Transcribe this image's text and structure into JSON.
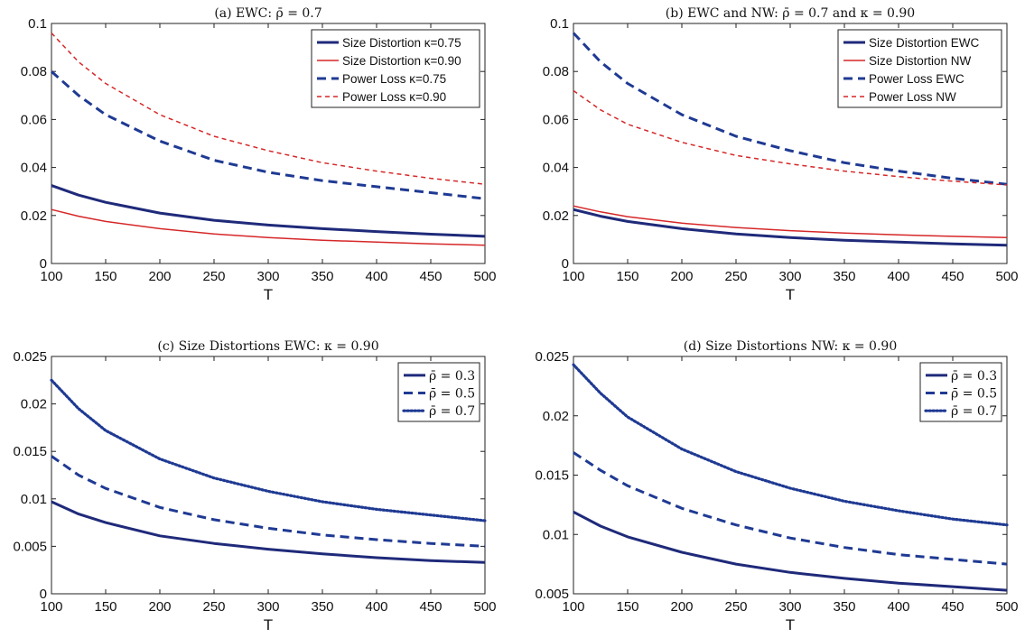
{
  "chart_data": [
    {
      "type": "line",
      "title": "(a) EWC: ρ̄ = 0.7",
      "xlabel": "T",
      "ylabel": "",
      "xlim": [
        100,
        500
      ],
      "ylim": [
        0,
        0.1
      ],
      "xticks": [
        100,
        150,
        200,
        250,
        300,
        350,
        400,
        450,
        500
      ],
      "yticks": [
        0,
        0.02,
        0.04,
        0.06,
        0.08,
        0.1
      ],
      "ytick_labels": [
        "0",
        "0.02",
        "0.04",
        "0.06",
        "0.08",
        "0.1"
      ],
      "legend_position": "top-right",
      "x": [
        100,
        125,
        150,
        200,
        250,
        300,
        350,
        400,
        450,
        500
      ],
      "series": [
        {
          "name": "Size Distortion κ=0.75",
          "color": "#1f2a7a",
          "style": "solid-thick",
          "values": [
            0.0325,
            0.0285,
            0.0255,
            0.021,
            0.018,
            0.016,
            0.0145,
            0.0133,
            0.0122,
            0.0113
          ]
        },
        {
          "name": "Size Distortion κ=0.90",
          "color": "#d62728",
          "style": "solid-thin",
          "values": [
            0.0225,
            0.0197,
            0.0175,
            0.0145,
            0.0123,
            0.0108,
            0.0097,
            0.0089,
            0.0082,
            0.0076
          ]
        },
        {
          "name": "Power Loss κ=0.75",
          "color": "#1f3a93",
          "style": "dashed-thick",
          "values": [
            0.08,
            0.07,
            0.062,
            0.051,
            0.043,
            0.038,
            0.0345,
            0.032,
            0.0295,
            0.027
          ]
        },
        {
          "name": "Power Loss κ=0.90",
          "color": "#d62728",
          "style": "dashed-thin",
          "values": [
            0.096,
            0.084,
            0.075,
            0.062,
            0.053,
            0.047,
            0.042,
            0.0385,
            0.0355,
            0.033
          ]
        }
      ]
    },
    {
      "type": "line",
      "title": "(b) EWC and NW: ρ̄ = 0.7 and κ = 0.90",
      "xlabel": "T",
      "ylabel": "",
      "xlim": [
        100,
        500
      ],
      "ylim": [
        0,
        0.1
      ],
      "xticks": [
        100,
        150,
        200,
        250,
        300,
        350,
        400,
        450,
        500
      ],
      "yticks": [
        0,
        0.02,
        0.04,
        0.06,
        0.08,
        0.1
      ],
      "ytick_labels": [
        "0",
        "0.02",
        "0.04",
        "0.06",
        "0.08",
        "0.1"
      ],
      "legend_position": "top-right",
      "x": [
        100,
        125,
        150,
        200,
        250,
        300,
        350,
        400,
        450,
        500
      ],
      "series": [
        {
          "name": "Size Distortion EWC",
          "color": "#1f2a7a",
          "style": "solid-thick",
          "values": [
            0.0225,
            0.0197,
            0.0175,
            0.0145,
            0.0123,
            0.0108,
            0.0097,
            0.0089,
            0.0082,
            0.0076
          ]
        },
        {
          "name": "Size Distortion NW",
          "color": "#d62728",
          "style": "solid-thin",
          "values": [
            0.024,
            0.0215,
            0.0195,
            0.0168,
            0.015,
            0.0137,
            0.0127,
            0.0119,
            0.0113,
            0.0108
          ]
        },
        {
          "name": "Power Loss EWC",
          "color": "#1f3a93",
          "style": "dashed-thick",
          "values": [
            0.096,
            0.084,
            0.075,
            0.062,
            0.053,
            0.047,
            0.042,
            0.0385,
            0.0355,
            0.033
          ]
        },
        {
          "name": "Power Loss NW",
          "color": "#d62728",
          "style": "dashed-thin",
          "values": [
            0.072,
            0.064,
            0.058,
            0.0505,
            0.045,
            0.0415,
            0.0385,
            0.0362,
            0.0343,
            0.0327
          ]
        }
      ]
    },
    {
      "type": "line",
      "title": "(c) Size Distortions EWC: κ = 0.90",
      "xlabel": "T",
      "ylabel": "",
      "xlim": [
        100,
        500
      ],
      "ylim": [
        0,
        0.025
      ],
      "xticks": [
        100,
        150,
        200,
        250,
        300,
        350,
        400,
        450,
        500
      ],
      "yticks": [
        0,
        0.005,
        0.01,
        0.015,
        0.02,
        0.025
      ],
      "ytick_labels": [
        "0",
        "0.005",
        "0.01",
        "0.015",
        "0.02",
        "0.025"
      ],
      "legend_position": "top-right",
      "x": [
        100,
        125,
        150,
        200,
        250,
        300,
        350,
        400,
        450,
        500
      ],
      "series": [
        {
          "name": "ρ̄ = 0.3",
          "color": "#1f2a7a",
          "style": "solid-thick",
          "values": [
            0.0097,
            0.0084,
            0.0075,
            0.0061,
            0.0053,
            0.0047,
            0.0042,
            0.0038,
            0.0035,
            0.0033
          ]
        },
        {
          "name": "ρ̄ = 0.5",
          "color": "#1f3a93",
          "style": "dashed-thick",
          "values": [
            0.0145,
            0.0125,
            0.0111,
            0.0091,
            0.0078,
            0.0069,
            0.0062,
            0.0057,
            0.0053,
            0.005
          ]
        },
        {
          "name": "ρ̄ = 0.7",
          "color": "#1f3a93",
          "style": "dotted-thick",
          "values": [
            0.0225,
            0.0195,
            0.0172,
            0.0142,
            0.0122,
            0.0108,
            0.0097,
            0.0089,
            0.0083,
            0.0077
          ]
        }
      ]
    },
    {
      "type": "line",
      "title": "(d) Size Distortions NW: κ = 0.90",
      "xlabel": "T",
      "ylabel": "",
      "xlim": [
        100,
        500
      ],
      "ylim": [
        0.005,
        0.025
      ],
      "xticks": [
        100,
        150,
        200,
        250,
        300,
        350,
        400,
        450,
        500
      ],
      "yticks": [
        0.005,
        0.01,
        0.015,
        0.02,
        0.025
      ],
      "ytick_labels": [
        "0.005",
        "0.01",
        "0.015",
        "0.02",
        "0.025"
      ],
      "legend_position": "top-right",
      "x": [
        100,
        125,
        150,
        200,
        250,
        300,
        350,
        400,
        450,
        500
      ],
      "series": [
        {
          "name": "ρ̄ = 0.3",
          "color": "#1f2a7a",
          "style": "solid-thick",
          "values": [
            0.0119,
            0.0107,
            0.0098,
            0.0085,
            0.0075,
            0.0068,
            0.0063,
            0.0059,
            0.0056,
            0.0053
          ]
        },
        {
          "name": "ρ̄ = 0.5",
          "color": "#1f3a93",
          "style": "dashed-thick",
          "values": [
            0.0169,
            0.0154,
            0.0141,
            0.0122,
            0.0108,
            0.0097,
            0.0089,
            0.0083,
            0.0079,
            0.0075
          ]
        },
        {
          "name": "ρ̄ = 0.7",
          "color": "#1f3a93",
          "style": "dotted-thick",
          "values": [
            0.0243,
            0.0219,
            0.0199,
            0.0172,
            0.0153,
            0.0139,
            0.0128,
            0.012,
            0.0113,
            0.0108
          ]
        }
      ]
    }
  ]
}
